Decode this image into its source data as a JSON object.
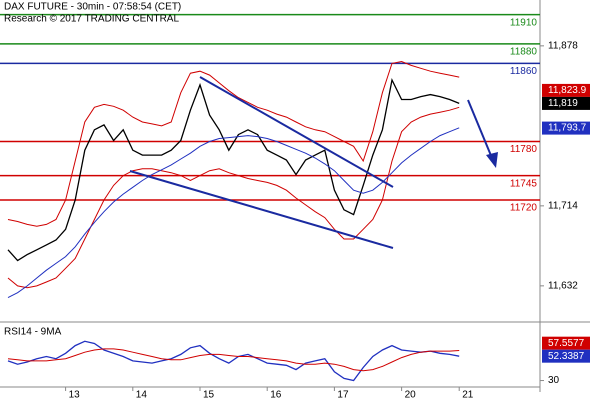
{
  "chart_data": [
    {
      "type": "line",
      "title": "DAX FUTURE - 30min - 07:58:54 (CET)",
      "subtitle": "Research © 2017 TRADING CENTRAL",
      "ylim": [
        11597,
        11925
      ],
      "yticks": [
        {
          "value": 11878,
          "label": "11,878"
        },
        {
          "value": 11714,
          "label": "11,714"
        },
        {
          "value": 11632,
          "label": "11,632"
        }
      ],
      "series": [
        {
          "color": "#000000",
          "values": [
            11669,
            11658,
            11664,
            11669,
            11674,
            11679,
            11690,
            11720,
            11771,
            11792,
            11797,
            11781,
            11792,
            11771,
            11766,
            11766,
            11766,
            11771,
            11781,
            11812,
            11838,
            11807,
            11792,
            11771,
            11787,
            11792,
            11787,
            11771,
            11766,
            11761,
            11746,
            11761,
            11766,
            11771,
            11730,
            11710,
            11705,
            11735,
            11766,
            11792,
            11843,
            11823,
            11823,
            11826,
            11828,
            11826,
            11823,
            11819
          ]
        },
        {
          "color": "#d00000",
          "values": [
            11700,
            11698,
            11695,
            11693,
            11695,
            11700,
            11720,
            11760,
            11800,
            11815,
            11818,
            11816,
            11812,
            11805,
            11800,
            11798,
            11796,
            11800,
            11830,
            11850,
            11852,
            11848,
            11840,
            11832,
            11825,
            11820,
            11815,
            11812,
            11808,
            11805,
            11800,
            11795,
            11792,
            11790,
            11785,
            11780,
            11775,
            11760,
            11790,
            11830,
            11860,
            11862,
            11858,
            11855,
            11852,
            11850,
            11848,
            11846
          ]
        },
        {
          "color": "#d00000",
          "values": [
            11640,
            11632,
            11630,
            11632,
            11636,
            11640,
            11650,
            11660,
            11680,
            11700,
            11720,
            11735,
            11745,
            11750,
            11752,
            11752,
            11750,
            11748,
            11745,
            11740,
            11745,
            11750,
            11752,
            11748,
            11745,
            11742,
            11740,
            11738,
            11735,
            11730,
            11722,
            11715,
            11708,
            11702,
            11690,
            11680,
            11680,
            11690,
            11700,
            11720,
            11760,
            11790,
            11800,
            11805,
            11808,
            11810,
            11812,
            11815
          ]
        },
        {
          "color": "#2030c0",
          "values": [
            11620,
            11625,
            11632,
            11640,
            11648,
            11655,
            11662,
            11672,
            11685,
            11697,
            11708,
            11718,
            11726,
            11733,
            11740,
            11746,
            11751,
            11756,
            11762,
            11768,
            11775,
            11780,
            11783,
            11784,
            11785,
            11786,
            11785,
            11783,
            11780,
            11776,
            11772,
            11768,
            11763,
            11757,
            11750,
            11740,
            11730,
            11727,
            11730,
            11738,
            11748,
            11758,
            11766,
            11773,
            11780,
            11786,
            11790,
            11794
          ]
        }
      ],
      "levels": [
        {
          "value": 11910,
          "color": "#1a8a1a"
        },
        {
          "value": 11880,
          "color": "#1a8a1a"
        },
        {
          "value": 11860,
          "color": "#1a2aa0"
        },
        {
          "value": 11780,
          "color": "#d00000"
        },
        {
          "value": 11745,
          "color": "#d00000"
        },
        {
          "value": 11720,
          "color": "#d00000"
        }
      ],
      "last_labels": [
        {
          "value": 11823.9,
          "label": "11,823.9",
          "color": "#d00000"
        },
        {
          "value": 11819,
          "label": "11,819",
          "color": "#000000"
        },
        {
          "value": 11793.7,
          "label": "11,793.7",
          "color": "#2030c0"
        }
      ]
    },
    {
      "type": "line",
      "title": "RSI14 - 9MA",
      "ylim": [
        25,
        80
      ],
      "yticks": [
        30
      ],
      "categories": [
        null,
        null,
        null,
        null,
        null,
        null,
        "13",
        null,
        null,
        null,
        null,
        null,
        null,
        "14",
        null,
        null,
        null,
        null,
        null,
        null,
        "15",
        null,
        null,
        null,
        null,
        null,
        null,
        "16",
        null,
        null,
        null,
        null,
        null,
        null,
        "17",
        null,
        null,
        null,
        null,
        null,
        null,
        "20",
        null,
        null,
        null,
        null,
        null,
        "21"
      ],
      "series": [
        {
          "color": "#2030c0",
          "values": [
            48,
            45,
            47,
            50,
            52,
            50,
            55,
            62,
            66,
            64,
            58,
            55,
            52,
            48,
            47,
            46,
            48,
            50,
            54,
            60,
            62,
            55,
            50,
            46,
            52,
            54,
            50,
            46,
            45,
            44,
            40,
            46,
            48,
            50,
            38,
            32,
            30,
            42,
            52,
            58,
            62,
            58,
            57,
            56,
            57,
            55,
            54,
            52.3387
          ]
        },
        {
          "color": "#d00000",
          "values": [
            50,
            49,
            48,
            48,
            48,
            49,
            50,
            53,
            56,
            58,
            59,
            59,
            58,
            56,
            54,
            52,
            50,
            49,
            49,
            51,
            53,
            54,
            54,
            53,
            52,
            52,
            51,
            50,
            49,
            48,
            46,
            45,
            45,
            46,
            45,
            43,
            40,
            39,
            40,
            43,
            47,
            51,
            54,
            56,
            57,
            57,
            57,
            57.5577
          ]
        }
      ],
      "last_labels": [
        {
          "value": 57.5577,
          "label": "57.5577",
          "color": "#d00000"
        },
        {
          "value": 52.3387,
          "label": "52.3387",
          "color": "#2030c0"
        }
      ]
    }
  ]
}
